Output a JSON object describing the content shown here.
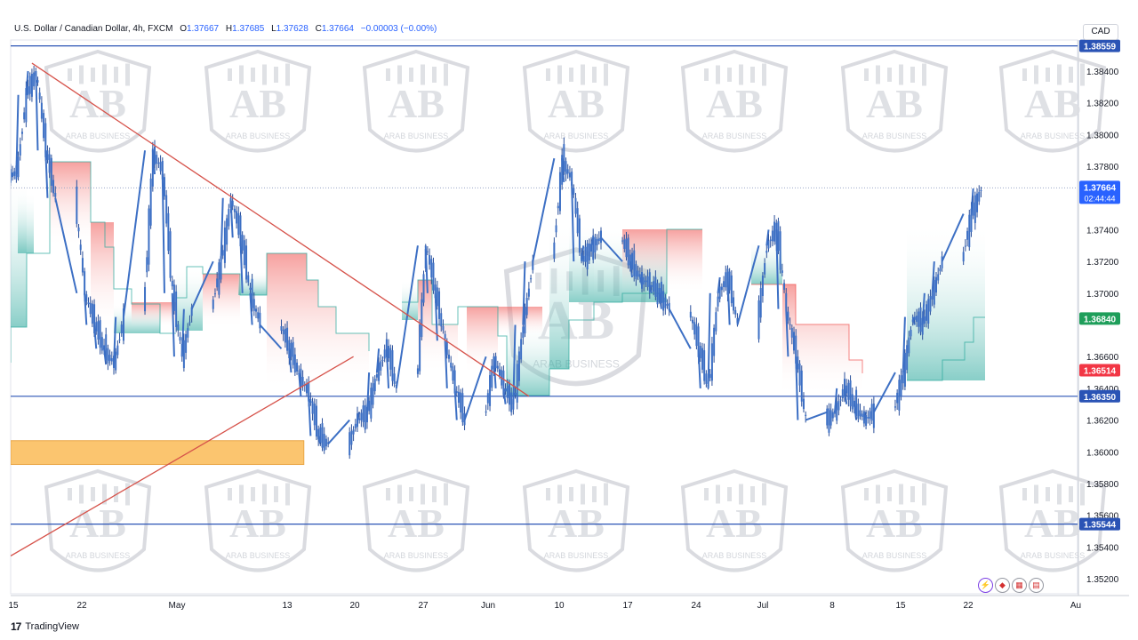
{
  "header": {
    "symbol": "U.S. Dollar / Canadian Dollar, 4h, FXCM",
    "open_label": "O",
    "open": "1.37667",
    "high_label": "H",
    "high": "1.37685",
    "low_label": "L",
    "low": "1.37628",
    "close_label": "C",
    "close": "1.37664",
    "change": "−0.00003 (−0.00%)"
  },
  "currency": "CAD",
  "branding": {
    "tradingview": "TradingView",
    "watermark": "ARAB BUSINESS"
  },
  "colors": {
    "candle_body": "#3c6fc4",
    "candle_wick": "#2a4f9a",
    "support_band": "#26a69a",
    "resistance_band": "#ef5350",
    "trendline": "#d6524a",
    "hline": "#2a53b5",
    "zone": "#fbc56f",
    "price_badge": "#2962ff"
  },
  "chart_data": {
    "type": "line",
    "title": "U.S. Dollar / Canadian Dollar, 4h, FXCM",
    "x_ticks": [
      "15",
      "22",
      "May",
      "13",
      "20",
      "27",
      "Jun",
      "10",
      "17",
      "24",
      "Jul",
      "8",
      "15",
      "22",
      "Au"
    ],
    "y_ticks": [
      "1.38400",
      "1.38200",
      "1.38000",
      "1.37800",
      "1.37400",
      "1.37200",
      "1.37000",
      "1.36600",
      "1.36400",
      "1.36200",
      "1.36000",
      "1.35800",
      "1.35600",
      "1.35400",
      "1.35200"
    ],
    "ylim": [
      1.3513,
      1.3868
    ],
    "series": [
      {
        "type": "candlestick-approx",
        "x": [
          "Apr 15",
          "Apr 16",
          "Apr 17",
          "Apr 18",
          "Apr 19",
          "Apr 22",
          "Apr 23",
          "Apr 24",
          "Apr 25",
          "Apr 26",
          "Apr 29",
          "Apr 30",
          "May 1",
          "May 2",
          "May 3",
          "May 6",
          "May 7",
          "May 8",
          "May 9",
          "May 10",
          "May 13",
          "May 14",
          "May 15",
          "May 16",
          "May 17",
          "May 20",
          "May 21",
          "May 22",
          "May 23",
          "May 24",
          "May 27",
          "May 28",
          "May 29",
          "May 30",
          "May 31",
          "Jun 3",
          "Jun 4",
          "Jun 5",
          "Jun 6",
          "Jun 7",
          "Jun 10",
          "Jun 11",
          "Jun 12",
          "Jun 13",
          "Jun 14",
          "Jun 17",
          "Jun 18",
          "Jun 19",
          "Jun 20",
          "Jun 21",
          "Jun 24",
          "Jun 25",
          "Jun 26",
          "Jun 27",
          "Jun 28",
          "Jul 1",
          "Jul 2",
          "Jul 3",
          "Jul 4",
          "Jul 5",
          "Jul 8",
          "Jul 9",
          "Jul 10",
          "Jul 11",
          "Jul 12",
          "Jul 15",
          "Jul 16",
          "Jul 17",
          "Jul 18",
          "Jul 19",
          "Jul 22",
          "Jul 23"
        ],
        "values": [
          1.3775,
          1.3825,
          1.384,
          1.379,
          1.376,
          1.37,
          1.368,
          1.3665,
          1.3655,
          1.3685,
          1.379,
          1.3775,
          1.37,
          1.366,
          1.369,
          1.372,
          1.376,
          1.3735,
          1.37,
          1.368,
          1.3665,
          1.365,
          1.3635,
          1.361,
          1.3605,
          1.362,
          1.3625,
          1.365,
          1.3665,
          1.364,
          1.373,
          1.37,
          1.367,
          1.364,
          1.362,
          1.366,
          1.364,
          1.363,
          1.368,
          1.372,
          1.3785,
          1.377,
          1.372,
          1.373,
          1.3735,
          1.372,
          1.371,
          1.3705,
          1.37,
          1.369,
          1.3665,
          1.364,
          1.37,
          1.371,
          1.368,
          1.373,
          1.374,
          1.369,
          1.366,
          1.362,
          1.3625,
          1.364,
          1.363,
          1.362,
          1.3625,
          1.365,
          1.3685,
          1.368,
          1.37,
          1.372,
          1.375,
          1.3766
        ]
      }
    ],
    "horizontal_levels": [
      1.38559,
      1.3635,
      1.35544
    ],
    "price_badges": [
      {
        "value": "1.38559",
        "kind": "level"
      },
      {
        "value": "1.37664",
        "kind": "last",
        "countdown": "02:44:44"
      },
      {
        "value": "1.36840",
        "kind": "support"
      },
      {
        "value": "1.36514",
        "kind": "resistance"
      },
      {
        "value": "1.36350",
        "kind": "level"
      },
      {
        "value": "1.35544",
        "kind": "level"
      }
    ],
    "trendlines": [
      {
        "from": [
          "Apr 17",
          1.3845
        ],
        "to": [
          "Jun 7",
          1.3635
        ]
      },
      {
        "from": [
          "Apr 15",
          1.3535
        ],
        "to": [
          "May 20",
          1.366
        ]
      }
    ],
    "zone": {
      "from": "Apr 15",
      "to": "May 16",
      "low": 1.3592,
      "high": 1.3607
    },
    "grid": false
  }
}
